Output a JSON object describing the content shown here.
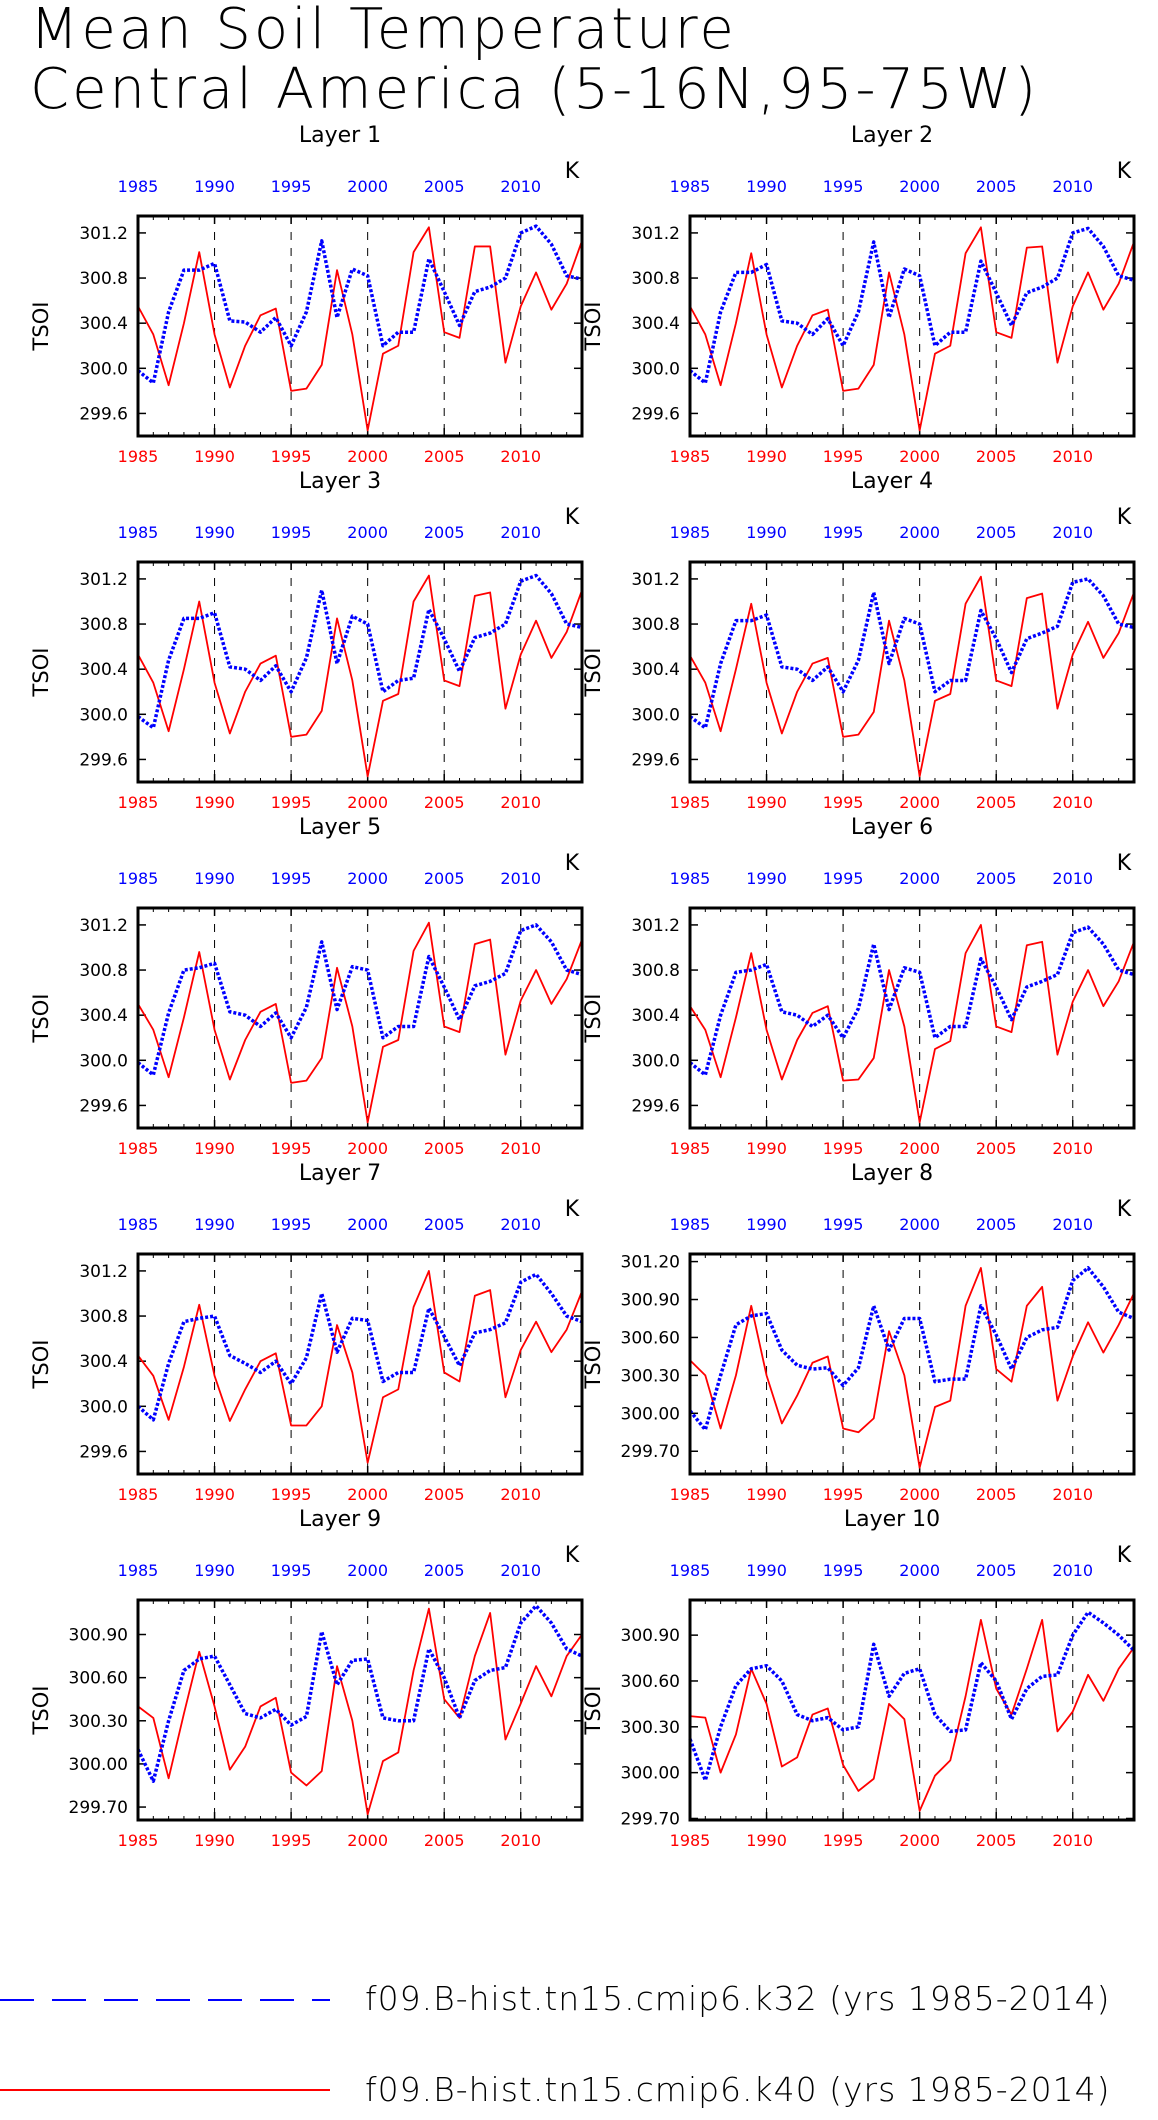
{
  "title": [
    "Mean Soil Temperature",
    "Central America (5-16N,95-75W)"
  ],
  "legend": [
    {
      "label": "f09.B-hist.tn15.cmip6.k32 (yrs 1985-2014)",
      "color": "#0000ff",
      "style": "dashed"
    },
    {
      "label": "f09.B-hist.tn15.cmip6.k40 (yrs 1985-2014)",
      "color": "#ff0000",
      "style": "solid"
    }
  ],
  "chart_data": [
    {
      "type": "line",
      "title": "Layer 1",
      "ylabel": "TSOI",
      "units": "K",
      "xlim": [
        1985,
        2014
      ],
      "ylim": [
        299.4,
        301.35
      ],
      "yticks": [
        "299.6",
        "300.0",
        "300.4",
        "300.8",
        "301.2"
      ],
      "ytick_values": [
        299.6,
        300.0,
        300.4,
        300.8,
        301.2
      ],
      "xticks": [
        "1985",
        "1990",
        "1995",
        "2000",
        "2005",
        "2010"
      ],
      "series": [
        {
          "color": "#0000ff",
          "values": [
            299.98,
            299.87,
            300.5,
            300.87,
            300.87,
            300.93,
            300.42,
            300.41,
            300.32,
            300.45,
            300.2,
            300.5,
            301.13,
            300.45,
            300.88,
            300.82,
            300.2,
            300.32,
            300.32,
            300.97,
            300.68,
            300.38,
            300.68,
            300.72,
            300.8,
            301.2,
            301.26,
            301.1,
            300.82,
            300.79
          ]
        },
        {
          "color": "#ff0000",
          "values": [
            300.55,
            300.3,
            299.85,
            300.4,
            301.03,
            300.3,
            299.83,
            300.2,
            300.47,
            300.53,
            299.8,
            299.82,
            300.03,
            300.87,
            300.3,
            299.45,
            300.13,
            300.2,
            301.03,
            301.25,
            300.32,
            300.27,
            301.08,
            301.08,
            300.05,
            300.55,
            300.85,
            300.52,
            300.75,
            301.13
          ]
        }
      ]
    },
    {
      "type": "line",
      "title": "Layer 2",
      "ylabel": "TSOI",
      "units": "K",
      "xlim": [
        1985,
        2014
      ],
      "ylim": [
        299.4,
        301.35
      ],
      "yticks": [
        "299.6",
        "300.0",
        "300.4",
        "300.8",
        "301.2"
      ],
      "ytick_values": [
        299.6,
        300.0,
        300.4,
        300.8,
        301.2
      ],
      "xticks": [
        "1985",
        "1990",
        "1995",
        "2000",
        "2005",
        "2010"
      ],
      "series": [
        {
          "color": "#0000ff",
          "values": [
            299.98,
            299.87,
            300.5,
            300.85,
            300.85,
            300.92,
            300.42,
            300.4,
            300.3,
            300.44,
            300.2,
            300.5,
            301.12,
            300.45,
            300.88,
            300.82,
            300.2,
            300.32,
            300.32,
            300.95,
            300.67,
            300.38,
            300.67,
            300.72,
            300.8,
            301.2,
            301.24,
            301.08,
            300.82,
            300.78
          ]
        },
        {
          "color": "#ff0000",
          "values": [
            300.55,
            300.3,
            299.85,
            300.4,
            301.02,
            300.3,
            299.83,
            300.2,
            300.47,
            300.52,
            299.8,
            299.82,
            300.03,
            300.85,
            300.3,
            299.45,
            300.13,
            300.2,
            301.02,
            301.25,
            300.32,
            300.27,
            301.07,
            301.08,
            300.05,
            300.55,
            300.85,
            300.52,
            300.75,
            301.12
          ]
        }
      ]
    },
    {
      "type": "line",
      "title": "Layer 3",
      "ylabel": "TSOI",
      "units": "K",
      "xlim": [
        1985,
        2014
      ],
      "ylim": [
        299.4,
        301.35
      ],
      "yticks": [
        "299.6",
        "300.0",
        "300.4",
        "300.8",
        "301.2"
      ],
      "ytick_values": [
        299.6,
        300.0,
        300.4,
        300.8,
        301.2
      ],
      "xticks": [
        "1985",
        "1990",
        "1995",
        "2000",
        "2005",
        "2010"
      ],
      "series": [
        {
          "color": "#0000ff",
          "values": [
            299.98,
            299.88,
            300.48,
            300.85,
            300.85,
            300.9,
            300.42,
            300.4,
            300.3,
            300.43,
            300.2,
            300.5,
            301.1,
            300.45,
            300.87,
            300.8,
            300.2,
            300.3,
            300.32,
            300.93,
            300.67,
            300.38,
            300.68,
            300.72,
            300.8,
            301.18,
            301.23,
            301.07,
            300.8,
            300.77
          ]
        },
        {
          "color": "#ff0000",
          "values": [
            300.53,
            300.28,
            299.85,
            300.4,
            301.0,
            300.28,
            299.83,
            300.2,
            300.45,
            300.52,
            299.8,
            299.82,
            300.03,
            300.85,
            300.3,
            299.45,
            300.12,
            300.18,
            301.0,
            301.23,
            300.3,
            300.25,
            301.05,
            301.08,
            300.05,
            300.53,
            300.83,
            300.5,
            300.73,
            301.1
          ]
        }
      ]
    },
    {
      "type": "line",
      "title": "Layer 4",
      "ylabel": "TSOI",
      "units": "K",
      "xlim": [
        1985,
        2014
      ],
      "ylim": [
        299.4,
        301.35
      ],
      "yticks": [
        "299.6",
        "300.0",
        "300.4",
        "300.8",
        "301.2"
      ],
      "ytick_values": [
        299.6,
        300.0,
        300.4,
        300.8,
        301.2
      ],
      "xticks": [
        "1985",
        "1990",
        "1995",
        "2000",
        "2005",
        "2010"
      ],
      "series": [
        {
          "color": "#0000ff",
          "values": [
            299.98,
            299.88,
            300.45,
            300.83,
            300.83,
            300.88,
            300.42,
            300.4,
            300.3,
            300.42,
            300.2,
            300.48,
            301.08,
            300.45,
            300.85,
            300.8,
            300.2,
            300.3,
            300.3,
            300.92,
            300.67,
            300.37,
            300.67,
            300.72,
            300.78,
            301.17,
            301.2,
            301.05,
            300.8,
            300.77
          ]
        },
        {
          "color": "#ff0000",
          "values": [
            300.52,
            300.28,
            299.85,
            300.4,
            300.98,
            300.28,
            299.83,
            300.2,
            300.45,
            300.5,
            299.8,
            299.82,
            300.02,
            300.83,
            300.3,
            299.45,
            300.12,
            300.18,
            300.98,
            301.22,
            300.3,
            300.25,
            301.03,
            301.07,
            300.05,
            300.53,
            300.82,
            300.5,
            300.72,
            301.08
          ]
        }
      ]
    },
    {
      "type": "line",
      "title": "Layer 5",
      "ylabel": "TSOI",
      "units": "K",
      "xlim": [
        1985,
        2014
      ],
      "ylim": [
        299.4,
        301.35
      ],
      "yticks": [
        "299.6",
        "300.0",
        "300.4",
        "300.8",
        "301.2"
      ],
      "ytick_values": [
        299.6,
        300.0,
        300.4,
        300.8,
        301.2
      ],
      "xticks": [
        "1985",
        "1990",
        "1995",
        "2000",
        "2005",
        "2010"
      ],
      "series": [
        {
          "color": "#0000ff",
          "values": [
            299.98,
            299.87,
            300.42,
            300.8,
            300.82,
            300.86,
            300.43,
            300.4,
            300.3,
            300.42,
            300.2,
            300.47,
            301.05,
            300.45,
            300.83,
            300.8,
            300.2,
            300.3,
            300.3,
            300.92,
            300.65,
            300.36,
            300.66,
            300.7,
            300.77,
            301.15,
            301.2,
            301.05,
            300.8,
            300.76
          ]
        },
        {
          "color": "#ff0000",
          "values": [
            300.5,
            300.27,
            299.85,
            300.38,
            300.96,
            300.27,
            299.83,
            300.18,
            300.43,
            300.5,
            299.8,
            299.82,
            300.02,
            300.82,
            300.3,
            299.45,
            300.12,
            300.18,
            300.97,
            301.22,
            300.3,
            300.25,
            301.03,
            301.07,
            300.05,
            300.53,
            300.8,
            300.5,
            300.72,
            301.07
          ]
        }
      ]
    },
    {
      "type": "line",
      "title": "Layer 6",
      "ylabel": "TSOI",
      "units": "K",
      "xlim": [
        1985,
        2014
      ],
      "ylim": [
        299.4,
        301.35
      ],
      "yticks": [
        "299.6",
        "300.0",
        "300.4",
        "300.8",
        "301.2"
      ],
      "ytick_values": [
        299.6,
        300.0,
        300.4,
        300.8,
        301.2
      ],
      "xticks": [
        "1985",
        "1990",
        "1995",
        "2000",
        "2005",
        "2010"
      ],
      "series": [
        {
          "color": "#0000ff",
          "values": [
            299.98,
            299.87,
            300.4,
            300.78,
            300.8,
            300.85,
            300.43,
            300.4,
            300.3,
            300.4,
            300.2,
            300.46,
            301.03,
            300.45,
            300.82,
            300.78,
            300.2,
            300.3,
            300.3,
            300.9,
            300.65,
            300.36,
            300.65,
            300.7,
            300.76,
            301.13,
            301.18,
            301.03,
            300.8,
            300.76
          ]
        },
        {
          "color": "#ff0000",
          "values": [
            300.48,
            300.27,
            299.85,
            300.38,
            300.95,
            300.27,
            299.83,
            300.18,
            300.42,
            300.48,
            299.82,
            299.83,
            300.02,
            300.8,
            300.3,
            299.45,
            300.1,
            300.17,
            300.95,
            301.2,
            300.3,
            300.25,
            301.02,
            301.05,
            300.05,
            300.52,
            300.8,
            300.48,
            300.7,
            301.05
          ]
        }
      ]
    },
    {
      "type": "line",
      "title": "Layer 7",
      "ylabel": "TSOI",
      "units": "K",
      "xlim": [
        1985,
        2014
      ],
      "ylim": [
        299.4,
        301.35
      ],
      "yticks": [
        "299.6",
        "300.0",
        "300.4",
        "300.8",
        "301.2"
      ],
      "ytick_values": [
        299.6,
        300.0,
        300.4,
        300.8,
        301.2
      ],
      "xticks": [
        "1985",
        "1990",
        "1995",
        "2000",
        "2005",
        "2010"
      ],
      "series": [
        {
          "color": "#0000ff",
          "values": [
            300.0,
            299.88,
            300.38,
            300.75,
            300.78,
            300.8,
            300.45,
            300.38,
            300.3,
            300.4,
            300.2,
            300.43,
            301.0,
            300.48,
            300.78,
            300.76,
            300.22,
            300.3,
            300.3,
            300.87,
            300.62,
            300.36,
            300.65,
            300.68,
            300.74,
            301.1,
            301.17,
            301.0,
            300.8,
            300.75
          ]
        },
        {
          "color": "#ff0000",
          "values": [
            300.45,
            300.27,
            299.88,
            300.35,
            300.9,
            300.27,
            299.87,
            300.15,
            300.4,
            300.47,
            299.83,
            299.83,
            300.0,
            300.72,
            300.3,
            299.5,
            300.08,
            300.15,
            300.88,
            301.2,
            300.3,
            300.22,
            300.98,
            301.03,
            300.08,
            300.5,
            300.75,
            300.48,
            300.68,
            301.02
          ]
        }
      ]
    },
    {
      "type": "line",
      "title": "Layer 8",
      "ylabel": "TSOI",
      "units": "K",
      "xlim": [
        1985,
        2014
      ],
      "ylim": [
        299.52,
        301.26
      ],
      "yticks": [
        "299.70",
        "300.00",
        "300.30",
        "300.60",
        "300.90",
        "301.20"
      ],
      "ytick_values": [
        299.7,
        300.0,
        300.3,
        300.6,
        300.9,
        301.2
      ],
      "xticks": [
        "1985",
        "1990",
        "1995",
        "2000",
        "2005",
        "2010"
      ],
      "series": [
        {
          "color": "#0000ff",
          "values": [
            300.02,
            299.87,
            300.3,
            300.7,
            300.77,
            300.79,
            300.5,
            300.38,
            300.35,
            300.36,
            300.22,
            300.36,
            300.85,
            300.5,
            300.75,
            300.75,
            300.25,
            300.27,
            300.27,
            300.85,
            300.62,
            300.35,
            300.6,
            300.66,
            300.68,
            301.05,
            301.15,
            301.0,
            300.8,
            300.75
          ]
        },
        {
          "color": "#ff0000",
          "values": [
            300.42,
            300.3,
            299.88,
            300.3,
            300.85,
            300.3,
            299.92,
            300.14,
            300.4,
            300.45,
            299.88,
            299.85,
            299.96,
            300.65,
            300.3,
            299.57,
            300.05,
            300.1,
            300.85,
            301.15,
            300.35,
            300.25,
            300.85,
            301.0,
            300.1,
            300.45,
            300.72,
            300.48,
            300.7,
            300.95
          ]
        }
      ]
    },
    {
      "type": "line",
      "title": "Layer 9",
      "ylabel": "TSOI",
      "units": "K",
      "xlim": [
        1985,
        2014
      ],
      "ylim": [
        299.61,
        301.14
      ],
      "yticks": [
        "299.70",
        "300.00",
        "300.30",
        "300.60",
        "300.90"
      ],
      "ytick_values": [
        299.7,
        300.0,
        300.3,
        300.6,
        300.9
      ],
      "xticks": [
        "1985",
        "1990",
        "1995",
        "2000",
        "2005",
        "2010"
      ],
      "series": [
        {
          "color": "#0000ff",
          "values": [
            300.1,
            299.88,
            300.3,
            300.65,
            300.73,
            300.75,
            300.55,
            300.35,
            300.32,
            300.38,
            300.27,
            300.33,
            300.92,
            300.55,
            300.72,
            300.73,
            300.32,
            300.3,
            300.3,
            300.8,
            300.6,
            300.32,
            300.58,
            300.65,
            300.67,
            300.98,
            301.1,
            300.98,
            300.8,
            300.75
          ]
        },
        {
          "color": "#ff0000",
          "values": [
            300.4,
            300.32,
            299.9,
            300.35,
            300.78,
            300.4,
            299.96,
            300.12,
            300.4,
            300.46,
            299.94,
            299.85,
            299.95,
            300.68,
            300.3,
            299.65,
            300.02,
            300.08,
            300.65,
            301.08,
            300.45,
            300.32,
            300.75,
            301.05,
            300.17,
            300.42,
            300.68,
            300.47,
            300.75,
            300.9
          ]
        }
      ]
    },
    {
      "type": "line",
      "title": "Layer 10",
      "ylabel": "TSOI",
      "units": "K",
      "xlim": [
        1985,
        2014
      ],
      "ylim": [
        299.69,
        301.13
      ],
      "yticks": [
        "299.70",
        "300.00",
        "300.30",
        "300.60",
        "300.90"
      ],
      "ytick_values": [
        299.7,
        300.0,
        300.3,
        300.6,
        300.9
      ],
      "xticks": [
        "1985",
        "1990",
        "1995",
        "2000",
        "2005",
        "2010"
      ],
      "series": [
        {
          "color": "#0000ff",
          "values": [
            300.22,
            299.95,
            300.3,
            300.57,
            300.68,
            300.7,
            300.6,
            300.38,
            300.34,
            300.36,
            300.28,
            300.3,
            300.84,
            300.5,
            300.65,
            300.68,
            300.38,
            300.27,
            300.28,
            300.72,
            300.6,
            300.35,
            300.55,
            300.63,
            300.64,
            300.9,
            301.05,
            300.98,
            300.9,
            300.8
          ]
        },
        {
          "color": "#ff0000",
          "values": [
            300.37,
            300.36,
            300.0,
            300.25,
            300.68,
            300.45,
            300.04,
            300.1,
            300.38,
            300.42,
            300.05,
            299.88,
            299.96,
            300.45,
            300.35,
            299.75,
            299.98,
            300.08,
            300.5,
            301.0,
            300.55,
            300.38,
            300.68,
            301.0,
            300.27,
            300.4,
            300.64,
            300.47,
            300.68,
            300.82
          ]
        }
      ]
    }
  ]
}
